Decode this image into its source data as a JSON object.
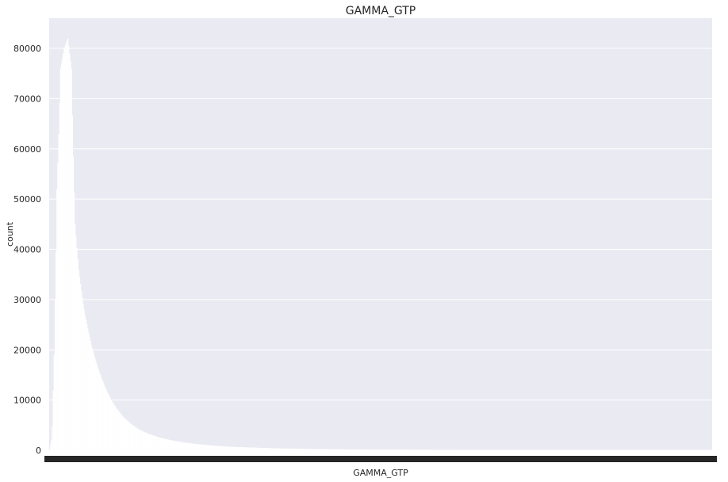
{
  "chart_data": {
    "type": "bar",
    "title": "GAMMA_GTP",
    "xlabel": "GAMMA_GTP",
    "ylabel": "count",
    "ylim": [
      0,
      86000
    ],
    "yticks": [
      0,
      10000,
      20000,
      30000,
      40000,
      50000,
      60000,
      70000,
      80000
    ],
    "grid": true,
    "legend": "none",
    "x_tick_labels_visible": false,
    "n_categories": 730,
    "peak_index": 20,
    "series": [
      {
        "name": "",
        "sampled_values": [
          {
            "index": 0,
            "value": 0
          },
          {
            "index": 2,
            "value": 2000
          },
          {
            "index": 4,
            "value": 12000
          },
          {
            "index": 6,
            "value": 30000
          },
          {
            "index": 8,
            "value": 52000
          },
          {
            "index": 12,
            "value": 76000
          },
          {
            "index": 16,
            "value": 80000
          },
          {
            "index": 20,
            "value": 82000
          },
          {
            "index": 24,
            "value": 76000
          },
          {
            "index": 28,
            "value": 45000
          },
          {
            "index": 32,
            "value": 36000
          },
          {
            "index": 38,
            "value": 28000
          },
          {
            "index": 46,
            "value": 21000
          },
          {
            "index": 56,
            "value": 15000
          },
          {
            "index": 68,
            "value": 10000
          },
          {
            "index": 82,
            "value": 6500
          },
          {
            "index": 100,
            "value": 4000
          },
          {
            "index": 120,
            "value": 2600
          },
          {
            "index": 150,
            "value": 1500
          },
          {
            "index": 200,
            "value": 700
          },
          {
            "index": 260,
            "value": 350
          },
          {
            "index": 350,
            "value": 150
          },
          {
            "index": 500,
            "value": 60
          },
          {
            "index": 729,
            "value": 20
          }
        ]
      }
    ],
    "colors": {
      "background": "#ffffff",
      "plot_background": "#eaeaf2",
      "grid": "#ffffff",
      "bars": "#ffffff",
      "edge": "#eaeaf2",
      "tick_text": "#262626"
    }
  }
}
